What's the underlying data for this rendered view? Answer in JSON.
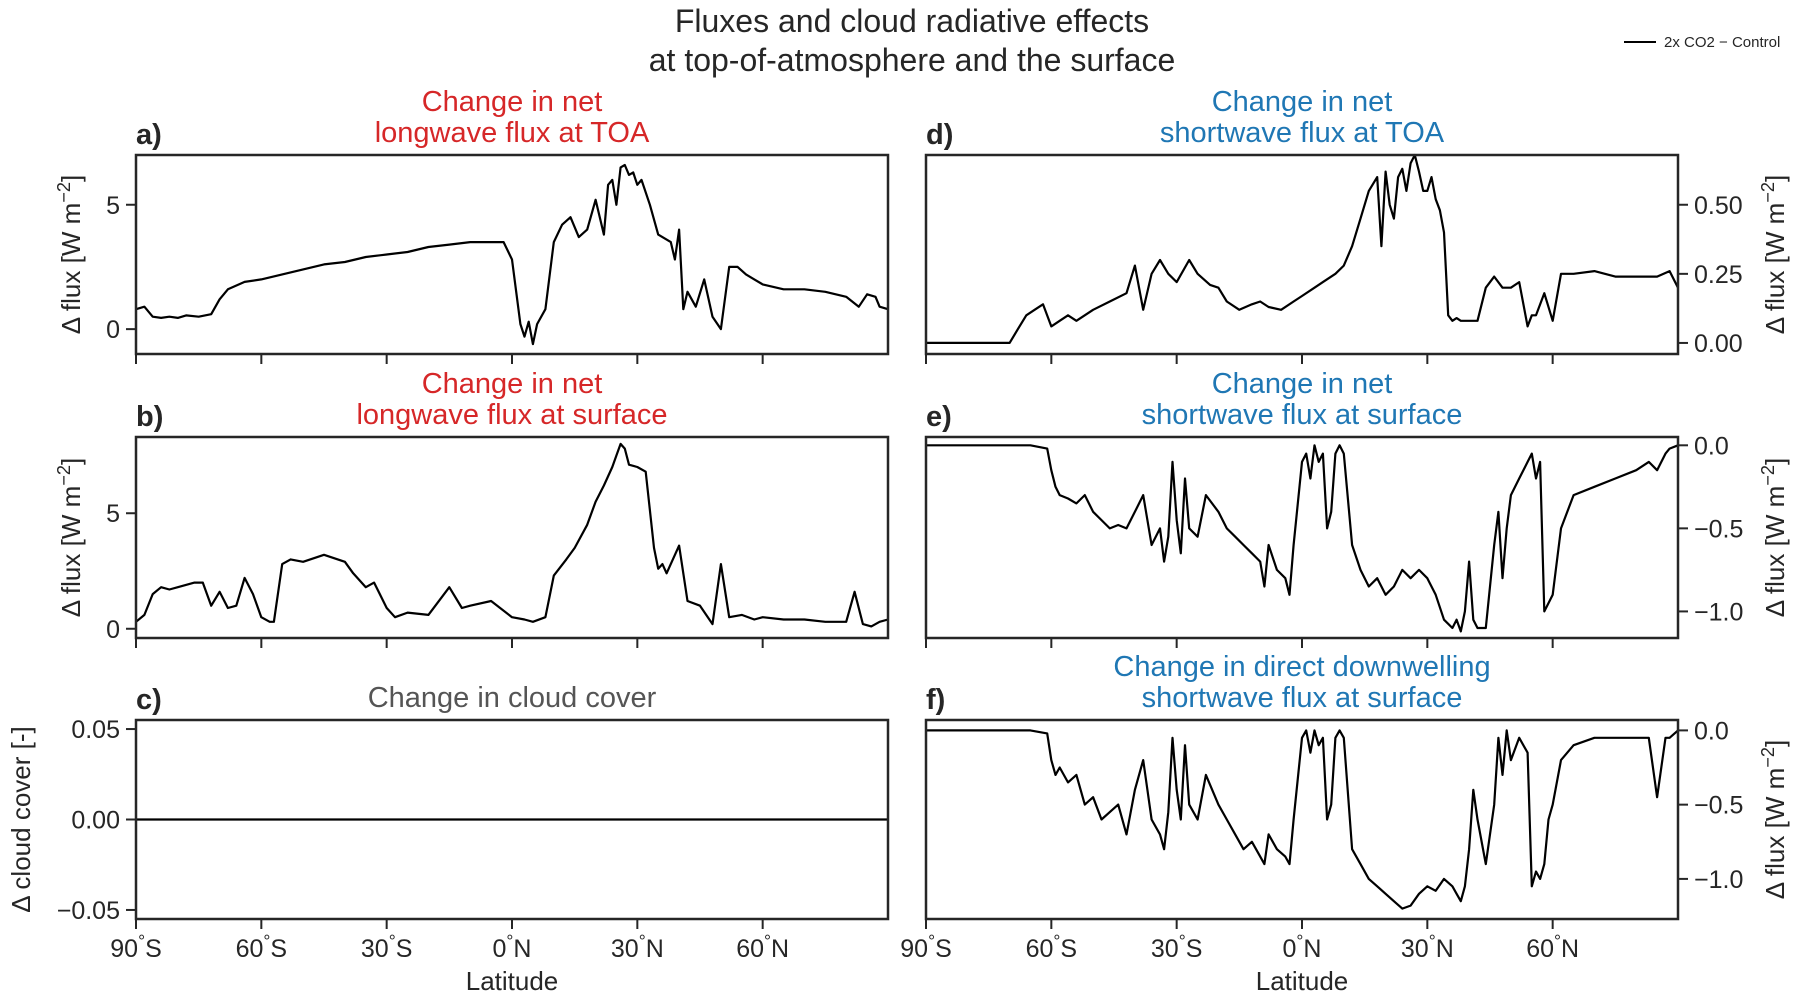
{
  "figure": {
    "title_line1": "Fluxes and cloud radiative effects",
    "title_line2": "at top-of-atmosphere and the surface",
    "legend_label": "2x CO2 − Control"
  },
  "colors": {
    "longwave": "#d62728",
    "shortwave": "#1f77b4",
    "cloud": "#555555",
    "line": "#000000"
  },
  "chart_data": [
    {
      "type": "line",
      "panel": "a)",
      "title_line1": "Change in net",
      "title_line2": "longwave flux at TOA",
      "title_color": "longwave",
      "ylabel": "Δ flux [W m$^{-2}$]",
      "ylabel_side": "left",
      "xlim": [
        -90,
        90
      ],
      "ylim": [
        -1.0,
        7.0
      ],
      "yticks": [
        0,
        5
      ],
      "ytick_labels": [
        "0",
        "5"
      ],
      "show_xticklabels": false,
      "x": [
        -90,
        -88,
        -86,
        -84,
        -82,
        -80,
        -78,
        -75,
        -72,
        -70,
        -68,
        -64,
        -60,
        -55,
        -50,
        -45,
        -40,
        -35,
        -30,
        -25,
        -20,
        -15,
        -10,
        -5,
        -2,
        0,
        1,
        2,
        3,
        4,
        5,
        6,
        8,
        10,
        12,
        14,
        16,
        18,
        20,
        22,
        23,
        24,
        25,
        26,
        27,
        28,
        29,
        30,
        31,
        33,
        35,
        37,
        38,
        39,
        40,
        41,
        42,
        44,
        46,
        48,
        50,
        52,
        54,
        56,
        58,
        60,
        65,
        70,
        75,
        80,
        83,
        85,
        87,
        88,
        90
      ],
      "values": [
        0.8,
        0.9,
        0.5,
        0.45,
        0.5,
        0.45,
        0.55,
        0.5,
        0.6,
        1.2,
        1.6,
        1.9,
        2.0,
        2.2,
        2.4,
        2.6,
        2.7,
        2.9,
        3.0,
        3.1,
        3.3,
        3.4,
        3.5,
        3.5,
        3.5,
        2.8,
        1.5,
        0.2,
        -0.3,
        0.3,
        -0.6,
        0.2,
        0.8,
        3.5,
        4.2,
        4.5,
        3.7,
        4.0,
        5.2,
        3.8,
        5.8,
        6.0,
        5.0,
        6.5,
        6.6,
        6.2,
        6.3,
        5.8,
        6.0,
        5.0,
        3.8,
        3.6,
        3.5,
        2.8,
        4.0,
        0.8,
        1.5,
        0.9,
        2.0,
        0.5,
        0.0,
        2.5,
        2.5,
        2.2,
        2.0,
        1.8,
        1.6,
        1.6,
        1.5,
        1.3,
        0.9,
        1.4,
        1.3,
        0.9,
        0.8
      ]
    },
    {
      "type": "line",
      "panel": "b)",
      "title_line1": "Change in net",
      "title_line2": "longwave flux at surface",
      "title_color": "longwave",
      "ylabel": "Δ flux [W m$^{-2}$]",
      "ylabel_side": "left",
      "xlim": [
        -90,
        90
      ],
      "ylim": [
        -0.4,
        8.3
      ],
      "yticks": [
        0,
        5
      ],
      "ytick_labels": [
        "0",
        "5"
      ],
      "show_xticklabels": false,
      "x": [
        -90,
        -88,
        -86,
        -84,
        -82,
        -80,
        -76,
        -74,
        -72,
        -70,
        -68,
        -66,
        -64,
        -62,
        -60,
        -58,
        -57,
        -55,
        -53,
        -50,
        -45,
        -40,
        -38,
        -35,
        -33,
        -30,
        -28,
        -25,
        -20,
        -15,
        -12,
        -10,
        -5,
        0,
        3,
        5,
        8,
        10,
        13,
        15,
        18,
        20,
        22,
        24,
        25,
        26,
        27,
        28,
        30,
        32,
        34,
        35,
        36,
        37,
        40,
        42,
        45,
        48,
        50,
        52,
        55,
        58,
        60,
        65,
        70,
        75,
        80,
        82,
        84,
        86,
        88,
        90
      ],
      "values": [
        0.3,
        0.6,
        1.5,
        1.8,
        1.7,
        1.8,
        2.0,
        2.0,
        1.0,
        1.6,
        0.9,
        1.0,
        2.2,
        1.5,
        0.5,
        0.3,
        0.3,
        2.8,
        3.0,
        2.9,
        3.2,
        2.9,
        2.4,
        1.8,
        2.0,
        0.9,
        0.5,
        0.7,
        0.6,
        1.8,
        0.9,
        1.0,
        1.2,
        0.5,
        0.4,
        0.3,
        0.5,
        2.3,
        3.0,
        3.5,
        4.5,
        5.5,
        6.2,
        7.0,
        7.5,
        8.0,
        7.8,
        7.1,
        7.0,
        6.8,
        3.5,
        2.6,
        2.8,
        2.4,
        3.6,
        1.2,
        1.0,
        0.2,
        2.8,
        0.5,
        0.6,
        0.4,
        0.5,
        0.4,
        0.4,
        0.3,
        0.3,
        1.6,
        0.2,
        0.1,
        0.3,
        0.4
      ]
    },
    {
      "type": "line",
      "panel": "c)",
      "title_line1": "",
      "title_line2": "Change in cloud cover",
      "title_color": "cloud",
      "ylabel": "Δ cloud cover [-]",
      "ylabel_side": "left",
      "xlim": [
        -90,
        90
      ],
      "ylim": [
        -0.055,
        0.055
      ],
      "yticks": [
        -0.05,
        0.0,
        0.05
      ],
      "ytick_labels": [
        "−0.05",
        "0.00",
        "0.05"
      ],
      "show_xticklabels": true,
      "xlabel": "Latitude",
      "xticks": [
        -90,
        -60,
        -30,
        0,
        30,
        60
      ],
      "xtick_labels": [
        "90$^\\circ$S",
        "60$^\\circ$S",
        "30$^\\circ$S",
        "0$^\\circ$N",
        "30$^\\circ$N",
        "60$^\\circ$N"
      ],
      "x": [
        -90,
        90
      ],
      "values": [
        0.0,
        0.0
      ]
    },
    {
      "type": "line",
      "panel": "d)",
      "title_line1": "Change in net",
      "title_line2": "shortwave flux at TOA",
      "title_color": "shortwave",
      "ylabel": "Δ flux [W m$^{-2}$]",
      "ylabel_side": "right",
      "xlim": [
        -90,
        90
      ],
      "ylim": [
        -0.04,
        0.68
      ],
      "yticks": [
        0.0,
        0.25,
        0.5
      ],
      "ytick_labels": [
        "0.00",
        "0.25",
        "0.50"
      ],
      "show_xticklabels": false,
      "x": [
        -90,
        -80,
        -70,
        -68,
        -66,
        -64,
        -62,
        -60,
        -58,
        -56,
        -54,
        -50,
        -46,
        -42,
        -40,
        -38,
        -36,
        -34,
        -32,
        -30,
        -27,
        -25,
        -22,
        -20,
        -18,
        -15,
        -12,
        -10,
        -8,
        -5,
        -2,
        0,
        3,
        5,
        8,
        10,
        12,
        14,
        16,
        18,
        19,
        20,
        21,
        22,
        23,
        24,
        25,
        26,
        27,
        28,
        29,
        30,
        31,
        32,
        33,
        34,
        35,
        36,
        37,
        38,
        40,
        42,
        44,
        46,
        48,
        50,
        52,
        54,
        55,
        56,
        58,
        60,
        62,
        65,
        70,
        75,
        80,
        85,
        88,
        90
      ],
      "values": [
        0.0,
        0.0,
        0.0,
        0.05,
        0.1,
        0.12,
        0.14,
        0.06,
        0.08,
        0.1,
        0.08,
        0.12,
        0.15,
        0.18,
        0.28,
        0.12,
        0.25,
        0.3,
        0.25,
        0.22,
        0.3,
        0.25,
        0.21,
        0.2,
        0.15,
        0.12,
        0.14,
        0.15,
        0.13,
        0.12,
        0.15,
        0.17,
        0.2,
        0.22,
        0.25,
        0.28,
        0.35,
        0.45,
        0.55,
        0.6,
        0.35,
        0.62,
        0.5,
        0.45,
        0.6,
        0.63,
        0.55,
        0.65,
        0.68,
        0.62,
        0.55,
        0.55,
        0.6,
        0.52,
        0.48,
        0.4,
        0.1,
        0.08,
        0.09,
        0.08,
        0.08,
        0.08,
        0.2,
        0.24,
        0.2,
        0.2,
        0.22,
        0.06,
        0.1,
        0.1,
        0.18,
        0.08,
        0.25,
        0.25,
        0.26,
        0.24,
        0.24,
        0.24,
        0.26,
        0.2
      ]
    },
    {
      "type": "line",
      "panel": "e)",
      "title_line1": "Change in net",
      "title_line2": "shortwave flux at surface",
      "title_color": "shortwave",
      "ylabel": "Δ flux [W m$^{-2}$]",
      "ylabel_side": "right",
      "xlim": [
        -90,
        90
      ],
      "ylim": [
        -1.16,
        0.05
      ],
      "yticks": [
        -1.0,
        -0.5,
        0.0
      ],
      "ytick_labels": [
        "−1.0",
        "−0.5",
        "0.0"
      ],
      "show_xticklabels": false,
      "x": [
        -90,
        -80,
        -65,
        -61,
        -60,
        -59,
        -58,
        -56,
        -54,
        -52,
        -50,
        -48,
        -46,
        -44,
        -42,
        -40,
        -38,
        -36,
        -34,
        -33,
        -32,
        -31,
        -30,
        -29,
        -28,
        -27,
        -25,
        -23,
        -20,
        -18,
        -16,
        -14,
        -12,
        -10,
        -9,
        -8,
        -6,
        -4,
        -3,
        -2,
        0,
        1,
        2,
        3,
        4,
        5,
        6,
        7,
        8,
        9,
        10,
        12,
        14,
        16,
        18,
        20,
        22,
        24,
        26,
        28,
        30,
        32,
        34,
        36,
        37,
        38,
        39,
        40,
        41,
        42,
        44,
        46,
        47,
        48,
        49,
        50,
        52,
        54,
        55,
        56,
        57,
        58,
        59,
        60,
        62,
        65,
        70,
        75,
        80,
        83,
        85,
        87,
        88,
        90
      ],
      "values": [
        0.0,
        0.0,
        0.0,
        -0.02,
        -0.15,
        -0.25,
        -0.3,
        -0.32,
        -0.35,
        -0.3,
        -0.4,
        -0.45,
        -0.5,
        -0.48,
        -0.5,
        -0.4,
        -0.3,
        -0.6,
        -0.5,
        -0.7,
        -0.55,
        -0.1,
        -0.45,
        -0.65,
        -0.2,
        -0.5,
        -0.55,
        -0.3,
        -0.4,
        -0.5,
        -0.55,
        -0.6,
        -0.65,
        -0.7,
        -0.85,
        -0.6,
        -0.75,
        -0.8,
        -0.9,
        -0.6,
        -0.1,
        -0.05,
        -0.2,
        0.0,
        -0.1,
        -0.05,
        -0.5,
        -0.4,
        -0.05,
        0.0,
        -0.05,
        -0.6,
        -0.75,
        -0.85,
        -0.8,
        -0.9,
        -0.85,
        -0.75,
        -0.8,
        -0.75,
        -0.8,
        -0.9,
        -1.05,
        -1.1,
        -1.05,
        -1.12,
        -1.0,
        -0.7,
        -1.05,
        -1.1,
        -1.1,
        -0.6,
        -0.4,
        -0.8,
        -0.5,
        -0.3,
        -0.2,
        -0.1,
        -0.05,
        -0.2,
        -0.1,
        -1.0,
        -0.95,
        -0.9,
        -0.5,
        -0.3,
        -0.25,
        -0.2,
        -0.15,
        -0.1,
        -0.15,
        -0.05,
        -0.02,
        0.0
      ]
    },
    {
      "type": "line",
      "panel": "f)",
      "title_line1": "Change in direct downwelling",
      "title_line2": "shortwave flux at surface",
      "title_color": "shortwave",
      "ylabel": "Δ flux [W m$^{-2}$]",
      "ylabel_side": "right",
      "xlim": [
        -90,
        90
      ],
      "ylim": [
        -1.27,
        0.07
      ],
      "yticks": [
        -1.0,
        -0.5,
        0.0
      ],
      "ytick_labels": [
        "−1.0",
        "−0.5",
        "0.0"
      ],
      "show_xticklabels": true,
      "xlabel": "Latitude",
      "xticks": [
        -90,
        -60,
        -30,
        0,
        30,
        60
      ],
      "xtick_labels": [
        "90$^\\circ$S",
        "60$^\\circ$S",
        "30$^\\circ$S",
        "0$^\\circ$N",
        "30$^\\circ$N",
        "60$^\\circ$N"
      ],
      "x": [
        -90,
        -80,
        -65,
        -61,
        -60,
        -59,
        -58,
        -56,
        -54,
        -52,
        -50,
        -48,
        -46,
        -44,
        -42,
        -40,
        -38,
        -36,
        -34,
        -33,
        -32,
        -31,
        -30,
        -29,
        -28,
        -27,
        -25,
        -23,
        -20,
        -18,
        -16,
        -14,
        -12,
        -10,
        -9,
        -8,
        -6,
        -4,
        -3,
        -2,
        0,
        1,
        2,
        3,
        4,
        5,
        6,
        7,
        8,
        9,
        10,
        12,
        14,
        16,
        18,
        20,
        22,
        24,
        26,
        28,
        30,
        32,
        34,
        36,
        37,
        38,
        39,
        40,
        41,
        42,
        44,
        46,
        47,
        48,
        49,
        50,
        52,
        54,
        55,
        56,
        57,
        58,
        59,
        60,
        62,
        65,
        70,
        75,
        80,
        83,
        85,
        87,
        88,
        90
      ],
      "values": [
        0.0,
        0.0,
        0.0,
        -0.02,
        -0.2,
        -0.3,
        -0.25,
        -0.35,
        -0.3,
        -0.5,
        -0.45,
        -0.6,
        -0.55,
        -0.5,
        -0.7,
        -0.4,
        -0.2,
        -0.6,
        -0.7,
        -0.8,
        -0.55,
        -0.05,
        -0.4,
        -0.6,
        -0.1,
        -0.5,
        -0.6,
        -0.3,
        -0.5,
        -0.6,
        -0.7,
        -0.8,
        -0.75,
        -0.85,
        -0.9,
        -0.7,
        -0.8,
        -0.85,
        -0.9,
        -0.6,
        -0.05,
        0.0,
        -0.15,
        0.0,
        -0.1,
        -0.05,
        -0.6,
        -0.5,
        -0.05,
        0.0,
        -0.05,
        -0.8,
        -0.9,
        -1.0,
        -1.05,
        -1.1,
        -1.15,
        -1.2,
        -1.18,
        -1.1,
        -1.05,
        -1.08,
        -1.0,
        -1.05,
        -1.1,
        -1.15,
        -1.05,
        -0.8,
        -0.4,
        -0.6,
        -0.9,
        -0.5,
        -0.05,
        -0.3,
        0.0,
        -0.2,
        -0.05,
        -0.15,
        -1.05,
        -0.95,
        -1.0,
        -0.9,
        -0.6,
        -0.5,
        -0.2,
        -0.1,
        -0.05,
        -0.05,
        -0.05,
        -0.05,
        -0.45,
        -0.05,
        -0.05,
        0.0
      ]
    }
  ]
}
